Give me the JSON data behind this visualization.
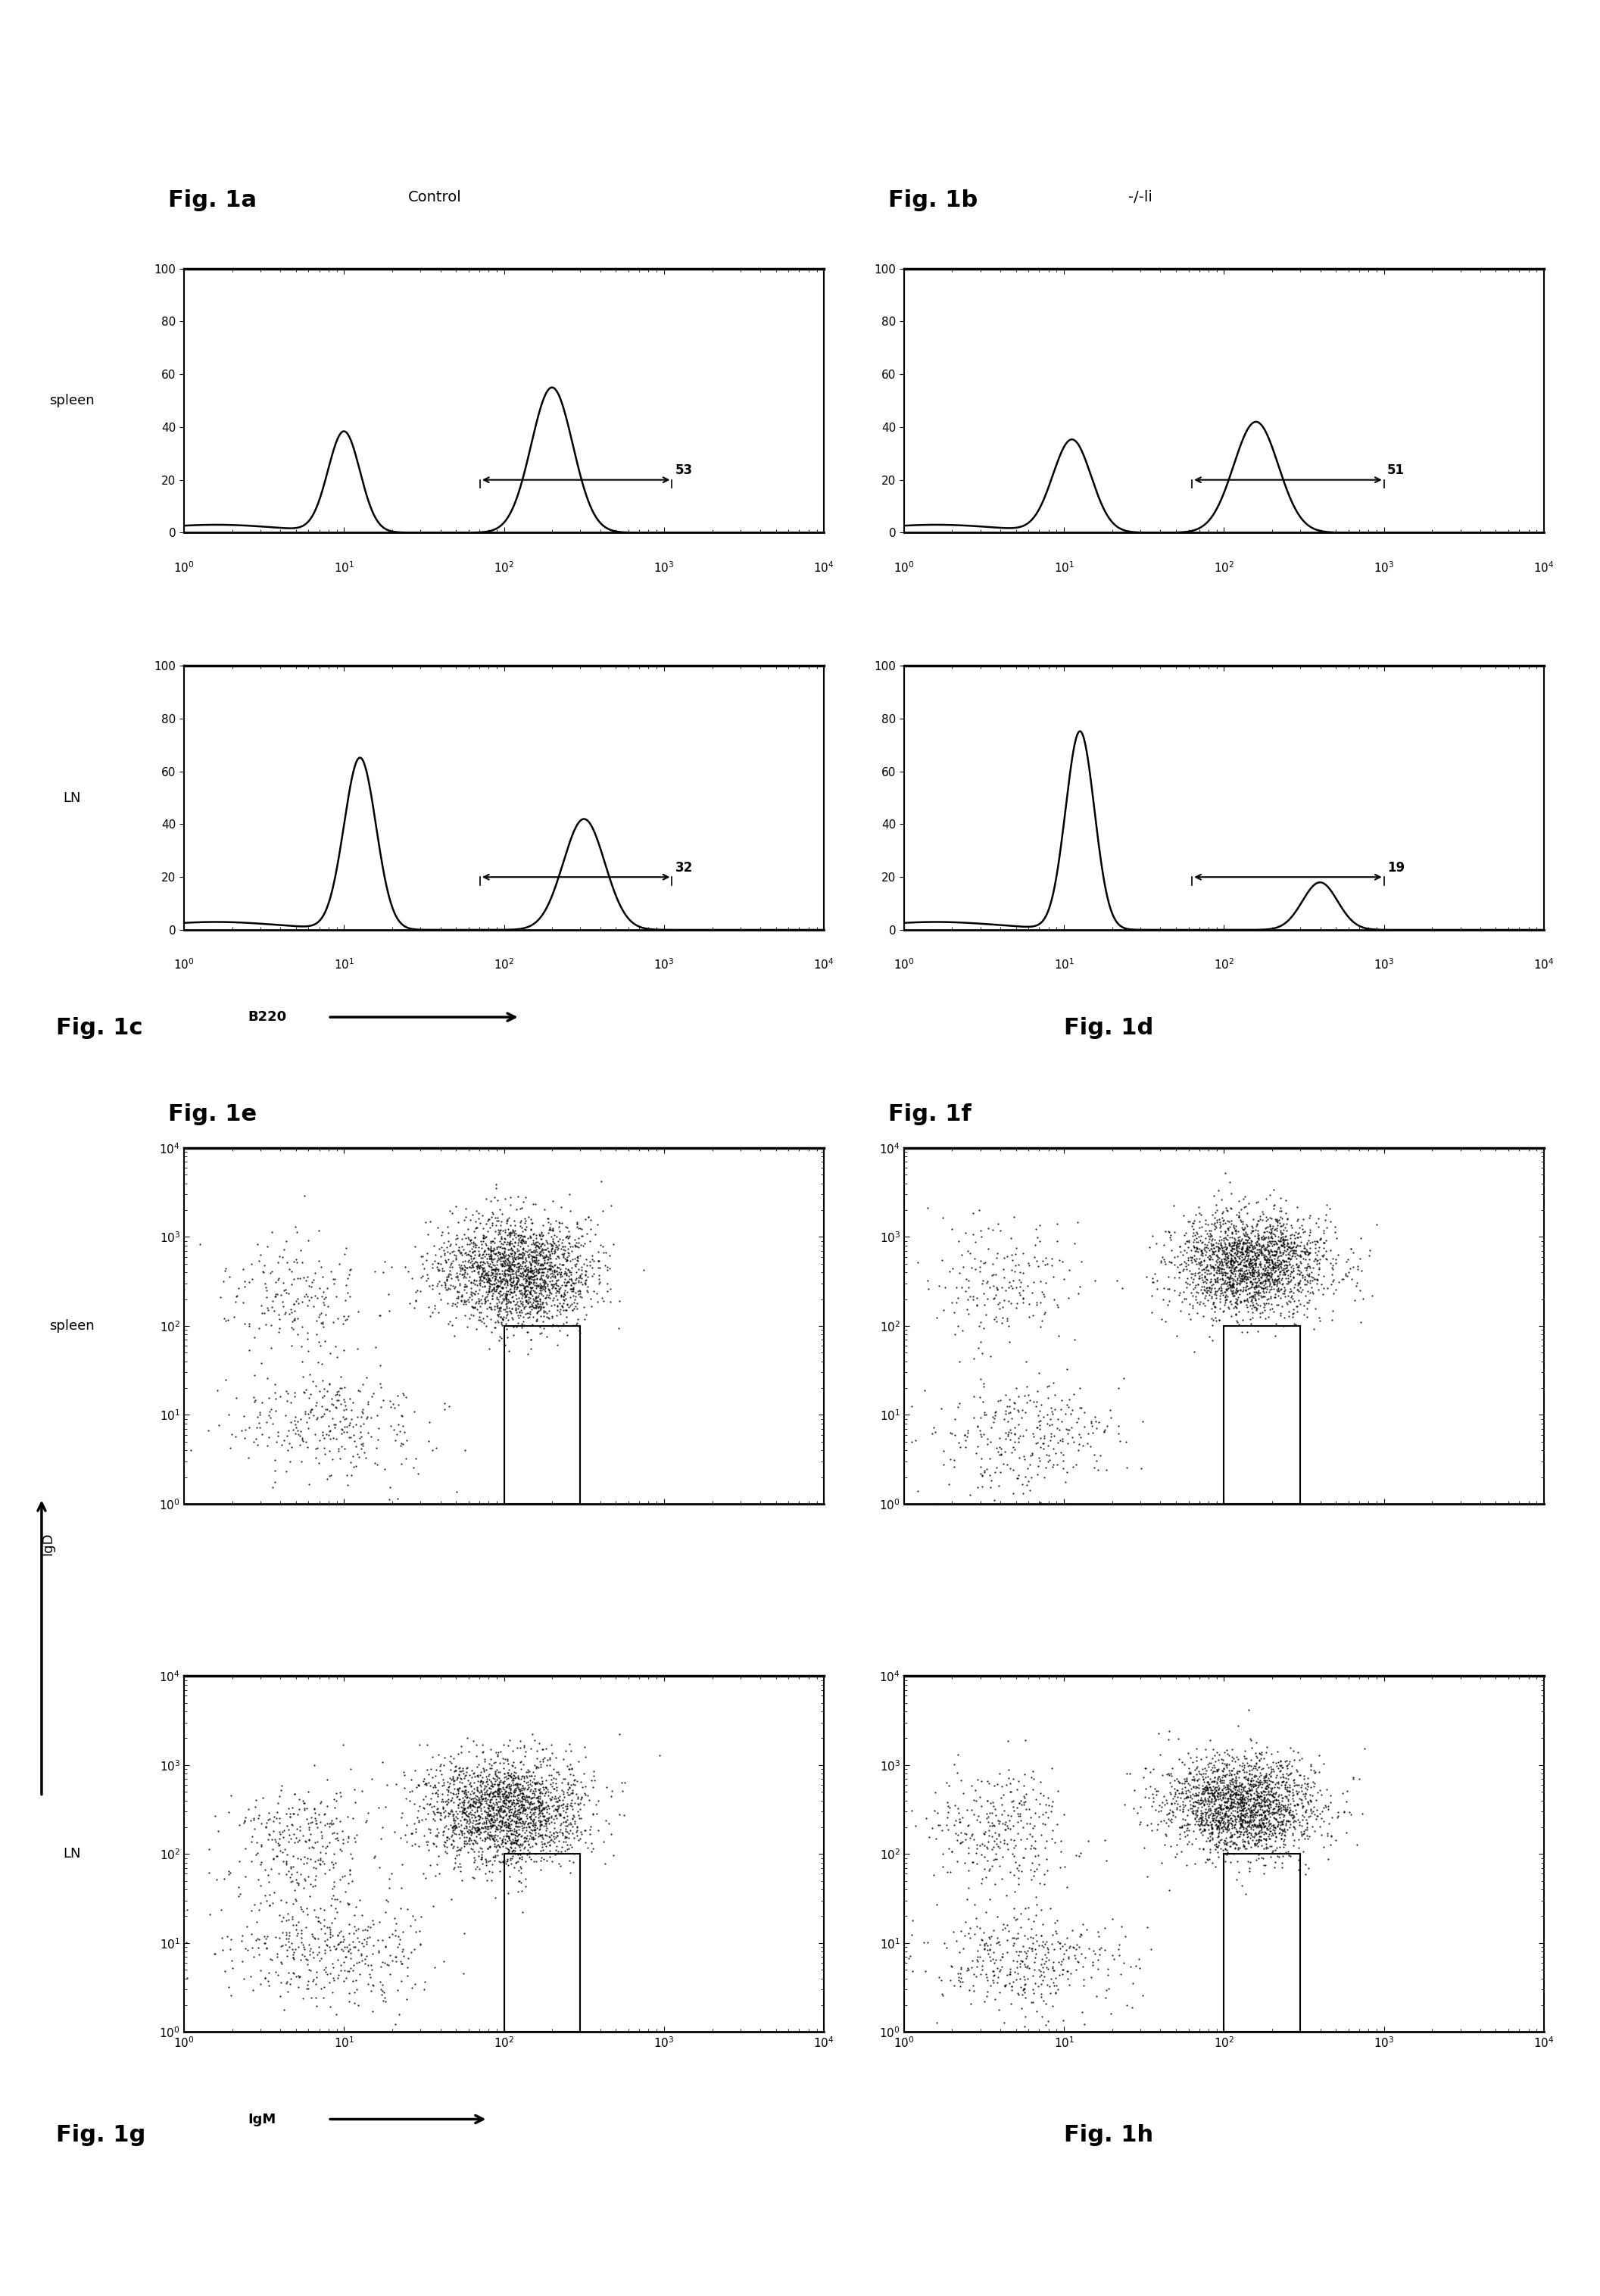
{
  "fig_width": 21.13,
  "fig_height": 30.32,
  "background_color": "#ffffff",
  "panel_titles": {
    "1a": "Fig. 1a",
    "1b": "Fig. 1b",
    "1c": "Fig. 1c",
    "1d": "Fig. 1d",
    "1e": "Fig. 1e",
    "1f": "Fig. 1f",
    "1g": "Fig. 1g",
    "1h": "Fig. 1h"
  },
  "subtitles": {
    "1a": "Control",
    "1b": "-/-li"
  },
  "percentages": {
    "1a": "53",
    "1b": "51",
    "1c": "32",
    "1d": "19"
  },
  "x_axis_label_histogram": "B220",
  "x_axis_label_scatter": "IgM",
  "y_axis_label_scatter": "IgD"
}
